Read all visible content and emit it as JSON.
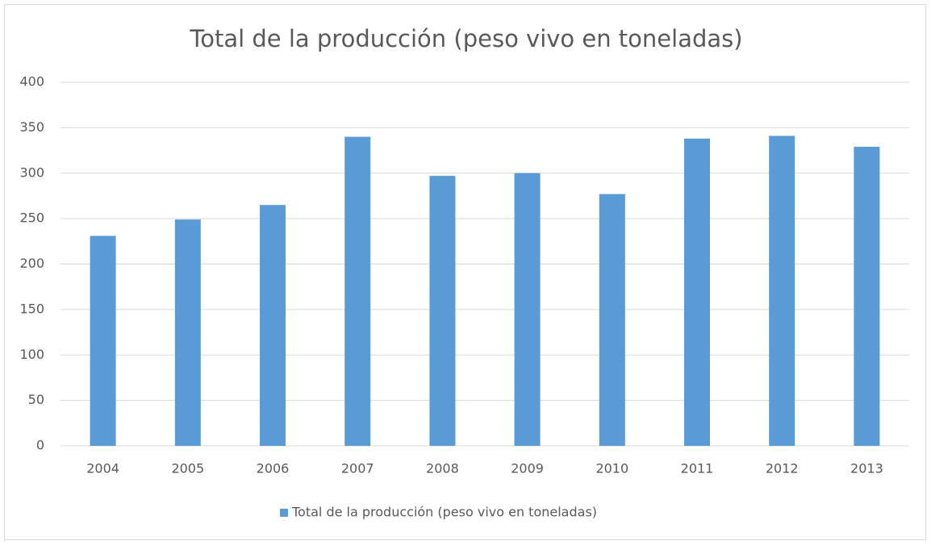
{
  "chart_data": {
    "type": "bar",
    "title": "Total de la producción (peso vivo en toneladas)",
    "categories": [
      "2004",
      "2005",
      "2006",
      "2007",
      "2008",
      "2009",
      "2010",
      "2011",
      "2012",
      "2013"
    ],
    "series": [
      {
        "name": "Total de la producción (peso vivo en toneladas)",
        "color": "#5b9bd5",
        "values": [
          231,
          249,
          265,
          340,
          297,
          300,
          277,
          338,
          341,
          329
        ]
      }
    ],
    "ylim": [
      0,
      400
    ],
    "yticks": [
      0,
      50,
      100,
      150,
      200,
      250,
      300,
      350,
      400
    ],
    "grid": true,
    "legend": "bottom"
  }
}
